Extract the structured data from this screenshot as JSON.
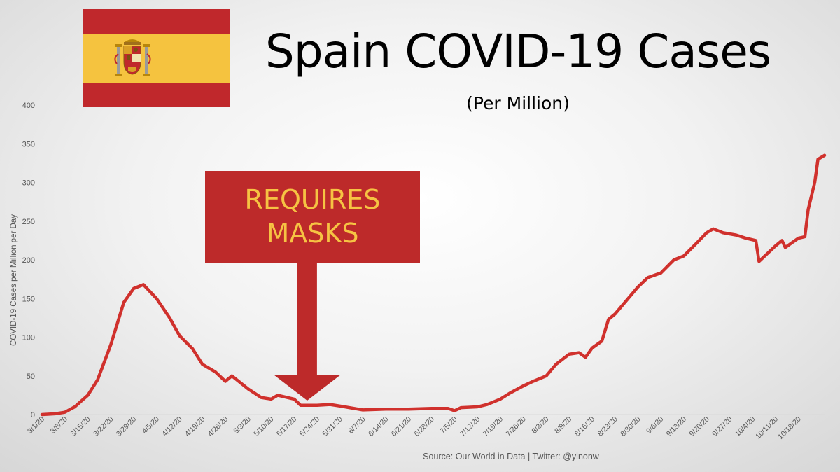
{
  "header": {
    "title": "Spain COVID-19 Cases",
    "subtitle": "(Per Million)"
  },
  "flag": {
    "country": "Spain",
    "red": "#c0282c",
    "yellow": "#f5c33f"
  },
  "annotation": {
    "label": "REQUIRES\nMASKS",
    "date": "5/21/20",
    "box_color": "#bd2a2a",
    "text_color": "#f6c343"
  },
  "footer": {
    "source": "Source: Our World in Data | Twitter: @yinonw"
  },
  "chart_data": {
    "type": "line",
    "ylabel": "COVID-19 Cases per Million per Day",
    "xlabel": "",
    "ylim": [
      0,
      400
    ],
    "yticks": [
      0,
      50,
      100,
      150,
      200,
      250,
      300,
      350,
      400
    ],
    "grid": false,
    "line_color": "#d0312d",
    "xticks": [
      "3/1/20",
      "3/8/20",
      "3/15/20",
      "3/22/20",
      "3/29/20",
      "4/5/20",
      "4/12/20",
      "4/19/20",
      "4/26/20",
      "5/3/20",
      "5/10/20",
      "5/17/20",
      "5/24/20",
      "5/31/20",
      "6/7/20",
      "6/14/20",
      "6/21/20",
      "6/28/20",
      "7/5/20",
      "7/12/20",
      "7/19/20",
      "7/26/20",
      "8/2/20",
      "8/9/20",
      "8/16/20",
      "8/23/20",
      "8/30/20",
      "9/6/20",
      "9/13/20",
      "9/20/20",
      "9/27/20",
      "10/4/20",
      "10/11/20",
      "10/18/20"
    ],
    "series": [
      {
        "points": [
          [
            "3/1/20",
            0
          ],
          [
            "3/5/20",
            1
          ],
          [
            "3/8/20",
            3
          ],
          [
            "3/11/20",
            10
          ],
          [
            "3/15/20",
            25
          ],
          [
            "3/18/20",
            45
          ],
          [
            "3/22/20",
            90
          ],
          [
            "3/26/20",
            145
          ],
          [
            "3/29/20",
            163
          ],
          [
            "4/1/20",
            168
          ],
          [
            "4/5/20",
            150
          ],
          [
            "4/9/20",
            125
          ],
          [
            "4/12/20",
            102
          ],
          [
            "4/16/20",
            85
          ],
          [
            "4/19/20",
            65
          ],
          [
            "4/23/20",
            55
          ],
          [
            "4/26/20",
            43
          ],
          [
            "4/28/20",
            50
          ],
          [
            "5/3/20",
            33
          ],
          [
            "5/7/20",
            22
          ],
          [
            "5/10/20",
            20
          ],
          [
            "5/12/20",
            25
          ],
          [
            "5/17/20",
            20
          ],
          [
            "5/19/20",
            12
          ],
          [
            "5/24/20",
            12
          ],
          [
            "5/28/20",
            13
          ],
          [
            "5/31/20",
            11
          ],
          [
            "6/7/20",
            6
          ],
          [
            "6/14/20",
            7
          ],
          [
            "6/21/20",
            7
          ],
          [
            "6/28/20",
            8
          ],
          [
            "7/3/20",
            8
          ],
          [
            "7/5/20",
            5
          ],
          [
            "7/7/20",
            9
          ],
          [
            "7/12/20",
            10
          ],
          [
            "7/15/20",
            13
          ],
          [
            "7/19/20",
            20
          ],
          [
            "7/22/20",
            28
          ],
          [
            "7/26/20",
            37
          ],
          [
            "7/29/20",
            43
          ],
          [
            "8/2/20",
            50
          ],
          [
            "8/5/20",
            65
          ],
          [
            "8/9/20",
            78
          ],
          [
            "8/12/20",
            80
          ],
          [
            "8/14/20",
            74
          ],
          [
            "8/16/20",
            86
          ],
          [
            "8/19/20",
            95
          ],
          [
            "8/21/20",
            123
          ],
          [
            "8/23/20",
            130
          ],
          [
            "8/26/20",
            145
          ],
          [
            "8/30/20",
            165
          ],
          [
            "9/2/20",
            177
          ],
          [
            "9/6/20",
            183
          ],
          [
            "9/10/20",
            200
          ],
          [
            "9/13/20",
            205
          ],
          [
            "9/17/20",
            222
          ],
          [
            "9/20/20",
            235
          ],
          [
            "9/22/20",
            240
          ],
          [
            "9/25/20",
            235
          ],
          [
            "9/29/20",
            232
          ],
          [
            "10/2/20",
            228
          ],
          [
            "10/5/20",
            225
          ],
          [
            "10/6/20",
            198
          ],
          [
            "10/8/20",
            206
          ],
          [
            "10/11/20",
            218
          ],
          [
            "10/13/20",
            225
          ],
          [
            "10/14/20",
            216
          ],
          [
            "10/16/20",
            222
          ],
          [
            "10/18/20",
            228
          ],
          [
            "10/20/20",
            230
          ],
          [
            "10/21/20",
            265
          ],
          [
            "10/23/20",
            300
          ],
          [
            "10/24/20",
            330
          ],
          [
            "10/26/20",
            335
          ]
        ]
      }
    ]
  }
}
